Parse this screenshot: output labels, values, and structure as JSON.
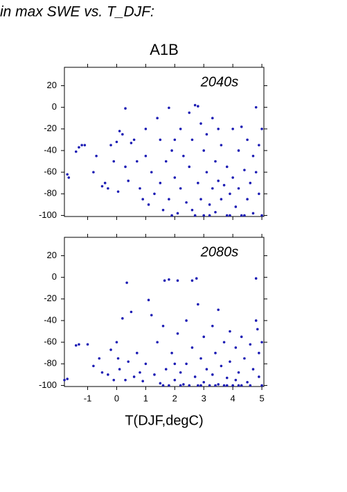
{
  "page_title": "in max SWE vs. T_DJF:",
  "chart_data": [
    {
      "type": "scatter",
      "title": "A1B",
      "annotation": "2040s",
      "color": "#1c1cb4",
      "xlim": [
        -1.8,
        5.07
      ],
      "ylim": [
        -101,
        37
      ],
      "xticks": [
        -1,
        0,
        1,
        2,
        3,
        4,
        5
      ],
      "yticks": [
        20,
        0,
        -20,
        -40,
        -60,
        -80,
        -100
      ],
      "x": [
        -1.7,
        -1.65,
        -1.4,
        -1.3,
        -1.2,
        -1.1,
        -0.8,
        -0.7,
        -0.5,
        -0.4,
        -0.3,
        -0.2,
        -0.1,
        0,
        0.05,
        0.1,
        0.2,
        0.3,
        0.3,
        0.4,
        0.5,
        0.6,
        0.7,
        0.8,
        0.9,
        1.0,
        1.0,
        1.1,
        1.2,
        1.3,
        1.4,
        1.5,
        1.5,
        1.6,
        1.7,
        1.8,
        1.8,
        1.9,
        2.0,
        2.1,
        2.2,
        2.2,
        2.3,
        2.4,
        2.5,
        2.5,
        2.6,
        2.6,
        2.7,
        2.8,
        2.8,
        2.9,
        2.9,
        3.0,
        3.0,
        3.1,
        3.1,
        3.2,
        3.3,
        3.3,
        3.4,
        3.4,
        3.5,
        3.5,
        3.6,
        3.6,
        3.7,
        3.8,
        3.8,
        3.9,
        4.0,
        4.0,
        4.1,
        4.2,
        4.2,
        4.3,
        4.4,
        4.4,
        4.5,
        4.5,
        4.6,
        4.7,
        4.7,
        4.8,
        4.8,
        4.9,
        4.9,
        5.0,
        5.0,
        2.0,
        3.2,
        3.9,
        2.7,
        4.3,
        1.9
      ],
      "values": [
        -62,
        -65,
        -41,
        -37,
        -35,
        -35,
        -60,
        -45,
        -73,
        -70,
        -75,
        -35,
        -50,
        -32,
        -78,
        -22,
        -25,
        -1,
        -55,
        -68,
        -33,
        -30,
        -50,
        -75,
        -85,
        -20,
        -45,
        -90,
        -60,
        -80,
        -10,
        -30,
        -70,
        -95,
        -50,
        -0.5,
        -85,
        -40,
        -65,
        -98,
        -20,
        -75,
        -45,
        -88,
        -5,
        -55,
        -30,
        -95,
        2,
        1,
        -70,
        -15,
        -85,
        -40,
        -100,
        -60,
        -25,
        -90,
        -10,
        -75,
        -50,
        -97,
        -20,
        -68,
        -35,
        -85,
        -72,
        -55,
        -100,
        -80,
        -20,
        -65,
        -92,
        -40,
        -75,
        -18,
        -58,
        -100,
        -30,
        -85,
        -70,
        -45,
        -98,
        0,
        -60,
        -35,
        -80,
        -20,
        -100,
        -30,
        -100,
        -100,
        -100,
        -100,
        -100
      ]
    },
    {
      "type": "scatter",
      "annotation": "2080s",
      "color": "#1c1cb4",
      "x_label": "T(DJF,degC)",
      "xlim": [
        -1.8,
        5.07
      ],
      "ylim": [
        -101,
        37
      ],
      "xticks": [
        -1,
        0,
        1,
        2,
        3,
        4,
        5
      ],
      "yticks": [
        20,
        0,
        -20,
        -40,
        -60,
        -80,
        -100
      ],
      "x": [
        -1.8,
        -1.7,
        -1.4,
        -1.3,
        -1.0,
        -0.8,
        -0.6,
        -0.5,
        -0.3,
        -0.2,
        -0.1,
        0,
        0.05,
        0.1,
        0.2,
        0.3,
        0.35,
        0.4,
        0.5,
        0.6,
        0.7,
        0.8,
        0.9,
        1.0,
        1.1,
        1.2,
        1.3,
        1.4,
        1.5,
        1.6,
        1.65,
        1.7,
        1.8,
        1.8,
        1.9,
        2.0,
        2.1,
        2.1,
        2.2,
        2.3,
        2.4,
        2.4,
        2.5,
        2.6,
        2.6,
        2.7,
        2.75,
        2.8,
        2.8,
        2.9,
        3.0,
        3.0,
        3.1,
        3.2,
        3.3,
        3.3,
        3.4,
        3.5,
        3.5,
        3.6,
        3.7,
        3.7,
        3.8,
        3.9,
        3.9,
        4.0,
        4.1,
        4.1,
        4.2,
        4.3,
        4.3,
        4.4,
        4.5,
        4.6,
        4.6,
        4.7,
        4.8,
        4.8,
        4.85,
        4.9,
        4.9,
        5.0,
        5.0,
        2.2,
        2.9,
        3.4,
        4.2,
        1.6,
        2.0,
        3.8
      ],
      "values": [
        -95,
        -94,
        -63,
        -62,
        -62,
        -82,
        -75,
        -88,
        -90,
        -67,
        -95,
        -60,
        -75,
        -85,
        -38,
        -95,
        -5,
        -78,
        -32,
        -92,
        -70,
        -88,
        -96,
        -80,
        -21,
        -35,
        -90,
        -60,
        -98,
        -45,
        -3,
        -85,
        -2,
        -100,
        -70,
        -95,
        -3,
        -52,
        -88,
        -99,
        -40,
        -80,
        -100,
        -3,
        -65,
        -92,
        -1,
        -25,
        -100,
        -75,
        -97,
        -55,
        -85,
        -100,
        -45,
        -90,
        -70,
        -99,
        -30,
        -82,
        -60,
        -100,
        -93,
        -50,
        -78,
        -100,
        -65,
        -95,
        -88,
        -55,
        -100,
        -75,
        -97,
        -62,
        -100,
        -85,
        -1,
        -40,
        -48,
        -92,
        -70,
        -100,
        -60,
        -100,
        -100,
        -100,
        -100,
        -100,
        -80,
        -100
      ]
    }
  ]
}
